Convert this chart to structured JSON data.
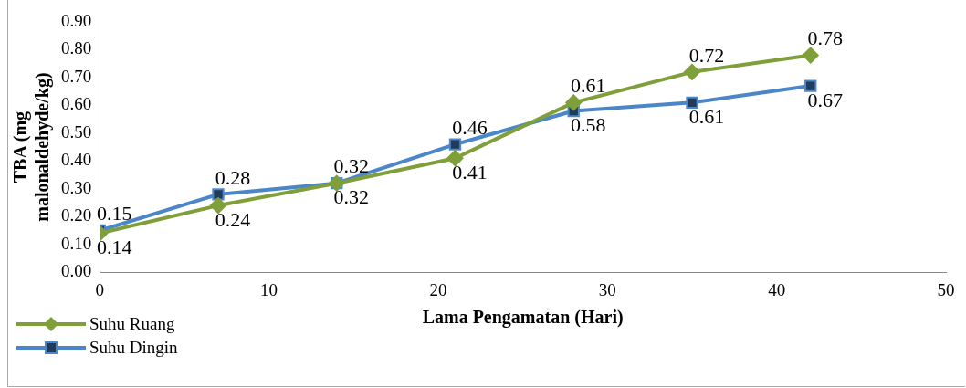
{
  "chart_data": {
    "type": "line",
    "xlabel": "Lama Pengamatan (Hari)",
    "ylabel": "TBA (mg malonaldehyde/kg)",
    "x": [
      0,
      7,
      14,
      21,
      28,
      35,
      42
    ],
    "series": [
      {
        "name": "Suhu Ruang",
        "color": "#7f9f3a",
        "marker": "diamond",
        "values": [
          0.14,
          0.24,
          0.32,
          0.41,
          0.61,
          0.72,
          0.78
        ]
      },
      {
        "name": "Suhu Dingin",
        "color": "#4a86c8",
        "marker": "square",
        "values": [
          0.15,
          0.28,
          0.32,
          0.46,
          0.58,
          0.61,
          0.67
        ]
      }
    ],
    "xlim": [
      0,
      50
    ],
    "xticks": [
      0,
      10,
      20,
      30,
      40,
      50
    ],
    "ylim": [
      0,
      0.9
    ],
    "yticks": [
      {
        "value": 0,
        "label": "0.00"
      },
      {
        "value": 0.1,
        "label": "0.10"
      },
      {
        "value": 0.2,
        "label": "0.20"
      },
      {
        "value": 0.3,
        "label": "0.30"
      },
      {
        "value": 0.4,
        "label": "0.40"
      },
      {
        "value": 0.5,
        "label": "0.50"
      },
      {
        "value": 0.6,
        "label": "0.60"
      },
      {
        "value": 0.7,
        "label": "0.70"
      },
      {
        "value": 0.8,
        "label": "0.80"
      },
      {
        "value": 0.9,
        "label": "0.90"
      }
    ],
    "grid": false,
    "legend": "bottom left",
    "data_labels": true,
    "line_style": "solid"
  }
}
